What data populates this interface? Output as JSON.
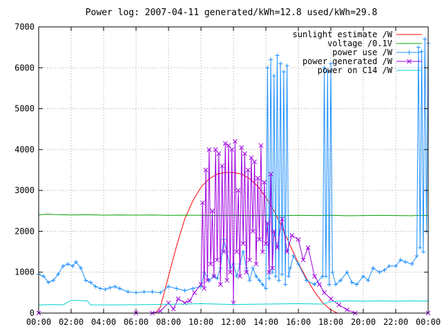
{
  "chart_data": {
    "type": "line",
    "title": "Power log: 2007-04-11 generated/kWh=12.8 used/kWh=29.8",
    "xlabel": "",
    "ylabel": "",
    "xlim": [
      0,
      24
    ],
    "ylim": [
      0,
      7000
    ],
    "x_ticks": [
      "00:00",
      "02:00",
      "04:00",
      "06:00",
      "08:00",
      "10:00",
      "12:00",
      "14:00",
      "16:00",
      "18:00",
      "20:00",
      "22:00",
      "00:00"
    ],
    "y_ticks": [
      "0",
      "1000",
      "2000",
      "3000",
      "4000",
      "5000",
      "6000",
      "7000"
    ],
    "grid": true,
    "legend_position": "top-right",
    "series": [
      {
        "name": "sunlight estimate /W",
        "color": "#ff0000",
        "marker": "none",
        "points": [
          [
            0,
            0
          ],
          [
            7.2,
            0
          ],
          [
            7.5,
            150
          ],
          [
            8.0,
            900
          ],
          [
            8.5,
            1650
          ],
          [
            9.0,
            2300
          ],
          [
            9.5,
            2750
          ],
          [
            10.0,
            3080
          ],
          [
            10.5,
            3280
          ],
          [
            11.0,
            3400
          ],
          [
            11.5,
            3440
          ],
          [
            12.0,
            3440
          ],
          [
            12.5,
            3400
          ],
          [
            13.0,
            3290
          ],
          [
            13.5,
            3100
          ],
          [
            14.0,
            2830
          ],
          [
            14.5,
            2500
          ],
          [
            15.0,
            2100
          ],
          [
            15.5,
            1650
          ],
          [
            16.0,
            1220
          ],
          [
            16.5,
            850
          ],
          [
            17.0,
            520
          ],
          [
            17.5,
            250
          ],
          [
            18.0,
            80
          ],
          [
            18.4,
            0
          ],
          [
            24,
            0
          ]
        ]
      },
      {
        "name": "voltage /0.1V",
        "color": "#00a000",
        "marker": "none",
        "points": [
          [
            0,
            2400
          ],
          [
            0.5,
            2420
          ],
          [
            1.0,
            2410
          ],
          [
            2.0,
            2400
          ],
          [
            3.0,
            2405
          ],
          [
            4.0,
            2395
          ],
          [
            5.0,
            2400
          ],
          [
            6.0,
            2395
          ],
          [
            7.0,
            2400
          ],
          [
            8.0,
            2390
          ],
          [
            9.0,
            2395
          ],
          [
            10.0,
            2390
          ],
          [
            11.0,
            2385
          ],
          [
            12.0,
            2390
          ],
          [
            13.0,
            2385
          ],
          [
            14.0,
            2390
          ],
          [
            15.0,
            2385
          ],
          [
            16.0,
            2390
          ],
          [
            17.0,
            2385
          ],
          [
            18.0,
            2390
          ],
          [
            19.0,
            2380
          ],
          [
            20.0,
            2385
          ],
          [
            21.0,
            2390
          ],
          [
            22.0,
            2385
          ],
          [
            23.0,
            2380
          ],
          [
            23.5,
            2390
          ],
          [
            24,
            2385
          ]
        ]
      },
      {
        "name": "power use /W",
        "color": "#1e90ff",
        "marker": "plus",
        "points": [
          [
            0,
            950
          ],
          [
            0.3,
            900
          ],
          [
            0.6,
            750
          ],
          [
            0.9,
            800
          ],
          [
            1.2,
            950
          ],
          [
            1.5,
            1150
          ],
          [
            1.8,
            1200
          ],
          [
            2.1,
            1150
          ],
          [
            2.3,
            1250
          ],
          [
            2.6,
            1100
          ],
          [
            2.9,
            800
          ],
          [
            3.2,
            750
          ],
          [
            3.5,
            650
          ],
          [
            3.8,
            600
          ],
          [
            4.1,
            580
          ],
          [
            4.4,
            620
          ],
          [
            4.7,
            650
          ],
          [
            5.0,
            600
          ],
          [
            5.5,
            520
          ],
          [
            6.0,
            500
          ],
          [
            6.5,
            520
          ],
          [
            7.0,
            520
          ],
          [
            7.5,
            500
          ],
          [
            8.0,
            650
          ],
          [
            8.5,
            600
          ],
          [
            9.0,
            550
          ],
          [
            9.5,
            600
          ],
          [
            10.0,
            650
          ],
          [
            10.2,
            1000
          ],
          [
            10.5,
            800
          ],
          [
            10.8,
            900
          ],
          [
            11.0,
            850
          ],
          [
            11.2,
            1100
          ],
          [
            11.4,
            1800
          ],
          [
            11.6,
            1500
          ],
          [
            11.8,
            1100
          ],
          [
            12.0,
            1200
          ],
          [
            12.2,
            900
          ],
          [
            12.4,
            1200
          ],
          [
            12.6,
            1500
          ],
          [
            12.8,
            1100
          ],
          [
            13.0,
            800
          ],
          [
            13.2,
            1100
          ],
          [
            13.4,
            900
          ],
          [
            13.6,
            800
          ],
          [
            13.8,
            700
          ],
          [
            14.0,
            600
          ],
          [
            14.1,
            6000
          ],
          [
            14.2,
            850
          ],
          [
            14.3,
            6200
          ],
          [
            14.4,
            1000
          ],
          [
            14.5,
            5800
          ],
          [
            14.6,
            900
          ],
          [
            14.7,
            6300
          ],
          [
            14.8,
            800
          ],
          [
            14.9,
            6100
          ],
          [
            15.0,
            950
          ],
          [
            15.1,
            5900
          ],
          [
            15.2,
            700
          ],
          [
            15.3,
            6050
          ],
          [
            15.4,
            900
          ],
          [
            15.5,
            1100
          ],
          [
            15.7,
            1400
          ],
          [
            16.0,
            1200
          ],
          [
            16.5,
            800
          ],
          [
            17.0,
            700
          ],
          [
            17.5,
            900
          ],
          [
            17.6,
            6000
          ],
          [
            17.7,
            900
          ],
          [
            17.8,
            5900
          ],
          [
            17.9,
            700
          ],
          [
            18.0,
            6100
          ],
          [
            18.1,
            1000
          ],
          [
            18.3,
            700
          ],
          [
            18.6,
            800
          ],
          [
            19.0,
            1000
          ],
          [
            19.3,
            750
          ],
          [
            19.6,
            700
          ],
          [
            20.0,
            900
          ],
          [
            20.3,
            800
          ],
          [
            20.6,
            1100
          ],
          [
            21.0,
            1000
          ],
          [
            21.3,
            1050
          ],
          [
            21.6,
            1150
          ],
          [
            22.0,
            1150
          ],
          [
            22.3,
            1300
          ],
          [
            22.6,
            1250
          ],
          [
            23.0,
            1200
          ],
          [
            23.3,
            1400
          ],
          [
            23.4,
            6500
          ],
          [
            23.5,
            1600
          ],
          [
            23.6,
            6400
          ],
          [
            23.7,
            1500
          ],
          [
            23.8,
            6700
          ],
          [
            23.9,
            2000
          ],
          [
            24,
            6600
          ]
        ]
      },
      {
        "name": "power generated /W",
        "color": "#a000e0",
        "marker": "cross",
        "points": [
          [
            0,
            0
          ],
          [
            6.0,
            0
          ],
          [
            7.0,
            0
          ],
          [
            7.5,
            50
          ],
          [
            8.0,
            250
          ],
          [
            8.3,
            100
          ],
          [
            8.6,
            350
          ],
          [
            9.0,
            250
          ],
          [
            9.3,
            300
          ],
          [
            9.6,
            500
          ],
          [
            10.0,
            700
          ],
          [
            10.1,
            2700
          ],
          [
            10.2,
            600
          ],
          [
            10.3,
            3500
          ],
          [
            10.4,
            800
          ],
          [
            10.5,
            4000
          ],
          [
            10.6,
            1200
          ],
          [
            10.7,
            2500
          ],
          [
            10.8,
            900
          ],
          [
            10.9,
            4000
          ],
          [
            11.0,
            1300
          ],
          [
            11.1,
            3900
          ],
          [
            11.2,
            700
          ],
          [
            11.3,
            3600
          ],
          [
            11.4,
            1500
          ],
          [
            11.5,
            4150
          ],
          [
            11.6,
            800
          ],
          [
            11.7,
            4100
          ],
          [
            11.8,
            1000
          ],
          [
            11.9,
            4000
          ],
          [
            12.0,
            250
          ],
          [
            12.1,
            4200
          ],
          [
            12.2,
            1500
          ],
          [
            12.3,
            3000
          ],
          [
            12.4,
            900
          ],
          [
            12.5,
            4050
          ],
          [
            12.6,
            1700
          ],
          [
            12.7,
            3900
          ],
          [
            12.8,
            1000
          ],
          [
            12.9,
            3500
          ],
          [
            13.0,
            1300
          ],
          [
            13.1,
            3800
          ],
          [
            13.2,
            2000
          ],
          [
            13.3,
            3700
          ],
          [
            13.4,
            1200
          ],
          [
            13.5,
            3300
          ],
          [
            13.6,
            1800
          ],
          [
            13.7,
            4100
          ],
          [
            13.8,
            1500
          ],
          [
            13.9,
            3200
          ],
          [
            14.0,
            1700
          ],
          [
            14.1,
            2200
          ],
          [
            14.2,
            1000
          ],
          [
            14.3,
            3400
          ],
          [
            14.4,
            1100
          ],
          [
            14.5,
            2000
          ],
          [
            14.7,
            1600
          ],
          [
            15.0,
            2300
          ],
          [
            15.3,
            1500
          ],
          [
            15.6,
            1900
          ],
          [
            16.0,
            1800
          ],
          [
            16.3,
            1300
          ],
          [
            16.6,
            1600
          ],
          [
            17.0,
            900
          ],
          [
            17.3,
            700
          ],
          [
            17.6,
            500
          ],
          [
            18.0,
            350
          ],
          [
            18.5,
            200
          ],
          [
            19.0,
            80
          ],
          [
            19.5,
            0
          ],
          [
            24,
            0
          ]
        ]
      },
      {
        "name": "power on C14 /W",
        "color": "#00d0d0",
        "marker": "none",
        "points": [
          [
            0,
            200
          ],
          [
            1.0,
            210
          ],
          [
            1.5,
            200
          ],
          [
            2.0,
            310
          ],
          [
            3.0,
            300
          ],
          [
            3.2,
            200
          ],
          [
            5.0,
            200
          ],
          [
            7.0,
            210
          ],
          [
            9.0,
            220
          ],
          [
            10.0,
            230
          ],
          [
            12.0,
            210
          ],
          [
            14.0,
            220
          ],
          [
            16.0,
            230
          ],
          [
            17.5,
            220
          ],
          [
            18.0,
            280
          ],
          [
            19.0,
            300
          ],
          [
            20.0,
            290
          ],
          [
            21.0,
            300
          ],
          [
            22.0,
            290
          ],
          [
            23.0,
            300
          ],
          [
            24,
            290
          ]
        ]
      }
    ]
  }
}
